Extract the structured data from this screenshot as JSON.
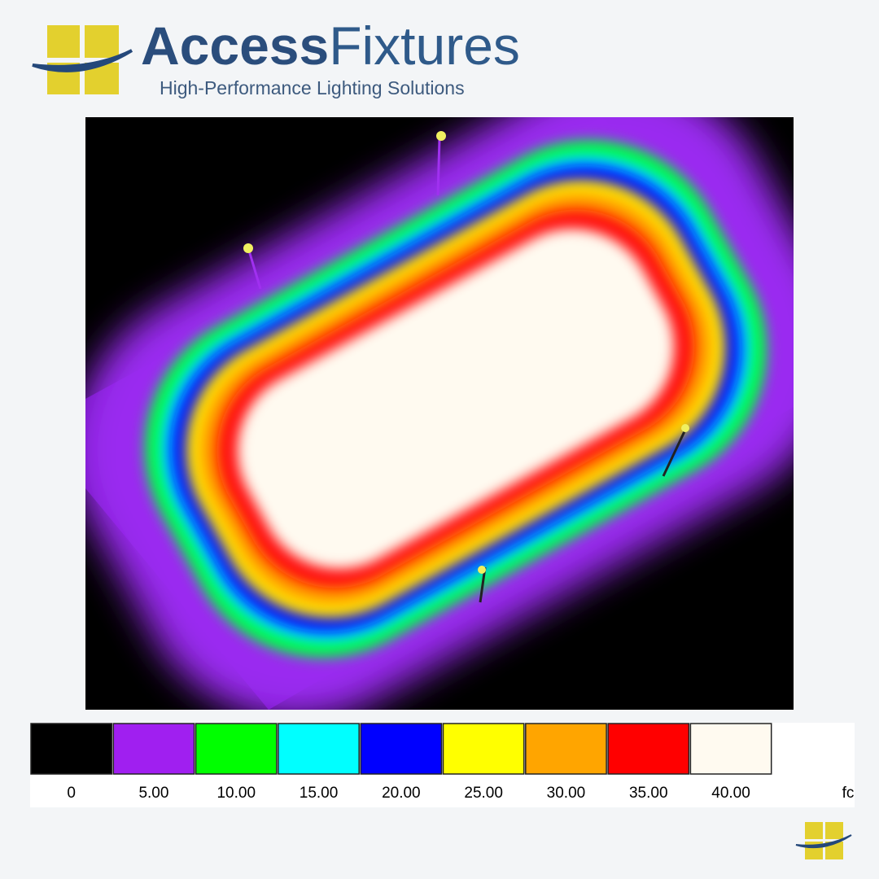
{
  "header": {
    "brand_first": "Access",
    "brand_second": "Fixtures",
    "tagline": "High-Performance Lighting Solutions"
  },
  "legend": {
    "items": [
      {
        "label": "0",
        "color": "#000000"
      },
      {
        "label": "5.00",
        "color": "#a01ff0"
      },
      {
        "label": "10.00",
        "color": "#00ff00"
      },
      {
        "label": "15.00",
        "color": "#00ffff"
      },
      {
        "label": "20.00",
        "color": "#0000ff"
      },
      {
        "label": "25.00",
        "color": "#ffff00"
      },
      {
        "label": "30.00",
        "color": "#ffa500"
      },
      {
        "label": "35.00",
        "color": "#ff0000"
      },
      {
        "label": "40.00",
        "color": "#fffaf0"
      }
    ],
    "unit": "fc"
  }
}
